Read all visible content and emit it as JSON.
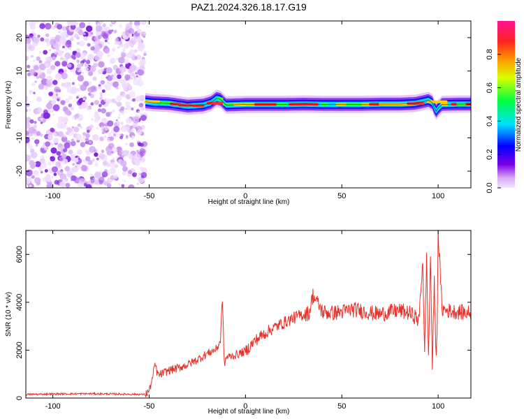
{
  "title": "PAZ1.2024.326.18.17.G19",
  "chart_data": [
    {
      "type": "heatmap",
      "xlabel": "Height of straight line (km)",
      "ylabel": "Frequency (Hz)",
      "xlim": [
        -114,
        117
      ],
      "ylim": [
        -25,
        25
      ],
      "xticks": [
        -100,
        -50,
        0,
        50,
        100
      ],
      "yticks": [
        -20,
        -10,
        0,
        10,
        20
      ],
      "noise_region_x": [
        -114,
        -52
      ],
      "signal_ridge": {
        "x": [
          -52,
          -48,
          -40,
          -30,
          -22,
          -18,
          -15,
          -13,
          -10,
          -5,
          0,
          10,
          20,
          30,
          40,
          50,
          60,
          70,
          80,
          88,
          92,
          95,
          97,
          98,
          99,
          100,
          102,
          110,
          117
        ],
        "y": [
          0.8,
          0.5,
          0.3,
          -0.5,
          -0.2,
          0.5,
          1.8,
          1.5,
          -0.2,
          -0.1,
          0.0,
          0.0,
          0.0,
          0.1,
          0.0,
          0.0,
          0.0,
          0.1,
          0.1,
          0.3,
          0.8,
          1.2,
          0.5,
          -1.0,
          -2.0,
          -1.2,
          0.0,
          0.1,
          0.1
        ]
      },
      "colorbar": {
        "label": "Normalized spectral amplitude",
        "ticks": [
          "0.0",
          "0.2",
          "0.4",
          "0.6",
          "0.8"
        ],
        "range": [
          0,
          1
        ]
      }
    },
    {
      "type": "line",
      "xlabel": "Height of straight line (km)",
      "ylabel": "SNR (10 * v/v)",
      "xlim": [
        -114,
        117
      ],
      "ylim": [
        0,
        7000
      ],
      "xticks": [
        -100,
        -50,
        0,
        50,
        100
      ],
      "yticks": [
        0,
        2000,
        4000,
        6000
      ],
      "color": "#e8312a",
      "series": [
        {
          "x": [
            -114,
            -100,
            -80,
            -60,
            -52,
            -50,
            -48,
            -47,
            -46,
            -45,
            -40,
            -35,
            -30,
            -25,
            -20,
            -15,
            -13,
            -12,
            -11,
            -10,
            -5,
            0,
            5,
            10,
            15,
            20,
            25,
            30,
            33,
            35,
            40,
            45,
            50,
            55,
            60,
            65,
            70,
            75,
            80,
            85,
            88,
            90,
            92,
            93,
            94,
            95,
            96,
            97,
            98,
            99,
            99.5,
            100,
            102,
            105,
            110,
            117
          ],
          "y": [
            150,
            170,
            180,
            160,
            150,
            300,
            900,
            1450,
            1100,
            950,
            1150,
            1250,
            1400,
            1600,
            1850,
            2050,
            2400,
            4200,
            1400,
            1700,
            1800,
            1950,
            2400,
            2700,
            2950,
            3150,
            3350,
            3500,
            3550,
            4300,
            3600,
            3550,
            3600,
            3700,
            3650,
            3550,
            3500,
            3600,
            3650,
            3550,
            3400,
            3200,
            5800,
            1800,
            5900,
            1500,
            6000,
            1300,
            4800,
            1500,
            3000,
            7000,
            3700,
            3650,
            3600,
            3550
          ]
        }
      ]
    }
  ]
}
